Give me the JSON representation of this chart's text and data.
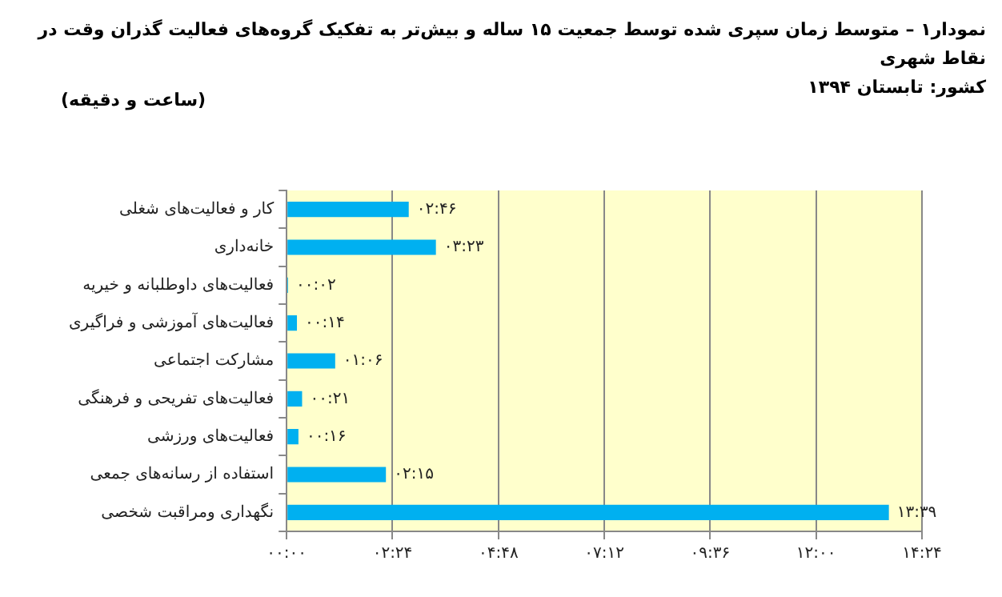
{
  "chart_data": {
    "type": "bar",
    "orientation": "horizontal",
    "title": "نمودار۱ – متوسط زمان سپری شده توسط جمعیت ۱۵ ساله و بیش‌تر به تفکیک گروه‌های فعالیت گذران وقت در نقاط شهری",
    "subtitle": "کشور: تابستان ۱۳۹۴",
    "annotations": [
      "(ساعت و دقیقه)"
    ],
    "categories": [
      "کار و فعالیت‌های شغلی",
      "خانه‌داری",
      "فعالیت‌های داوطلبانه و خیریه",
      "فعالیت‌های آموزشی و فراگیری",
      "مشارکت اجتماعی",
      "فعالیت‌های تفریحی و فرهنگی",
      "فعالیت‌های ورزشی",
      "استفاده از رسانه‌های جمعی",
      "نگهداری ومراقبت شخصی"
    ],
    "values": [
      2.767,
      3.383,
      0.033,
      0.233,
      1.1,
      0.35,
      0.267,
      2.25,
      13.65
    ],
    "value_labels": [
      "۰۲:۴۶",
      "۰۳:۲۳",
      "۰۰:۰۲",
      "۰۰:۱۴",
      "۰۱:۰۶",
      "۰۰:۲۱",
      "۰۰:۱۶",
      "۰۲:۱۵",
      "۱۳:۳۹"
    ],
    "color": "#00b0f0",
    "xlim": [
      0,
      14.4
    ],
    "xticks": [
      {
        "value": 0,
        "label": "۰۰:۰۰"
      },
      {
        "value": 2.4,
        "label": "۰۲:۲۴"
      },
      {
        "value": 4.8,
        "label": "۰۴:۴۸"
      },
      {
        "value": 7.2,
        "label": "۰۷:۱۲"
      },
      {
        "value": 9.6,
        "label": "۰۹:۳۶"
      },
      {
        "value": 12,
        "label": "۱۲:۰۰"
      },
      {
        "value": 14.4,
        "label": "۱۴:۲۴"
      }
    ],
    "grid": "x",
    "legend": false
  }
}
